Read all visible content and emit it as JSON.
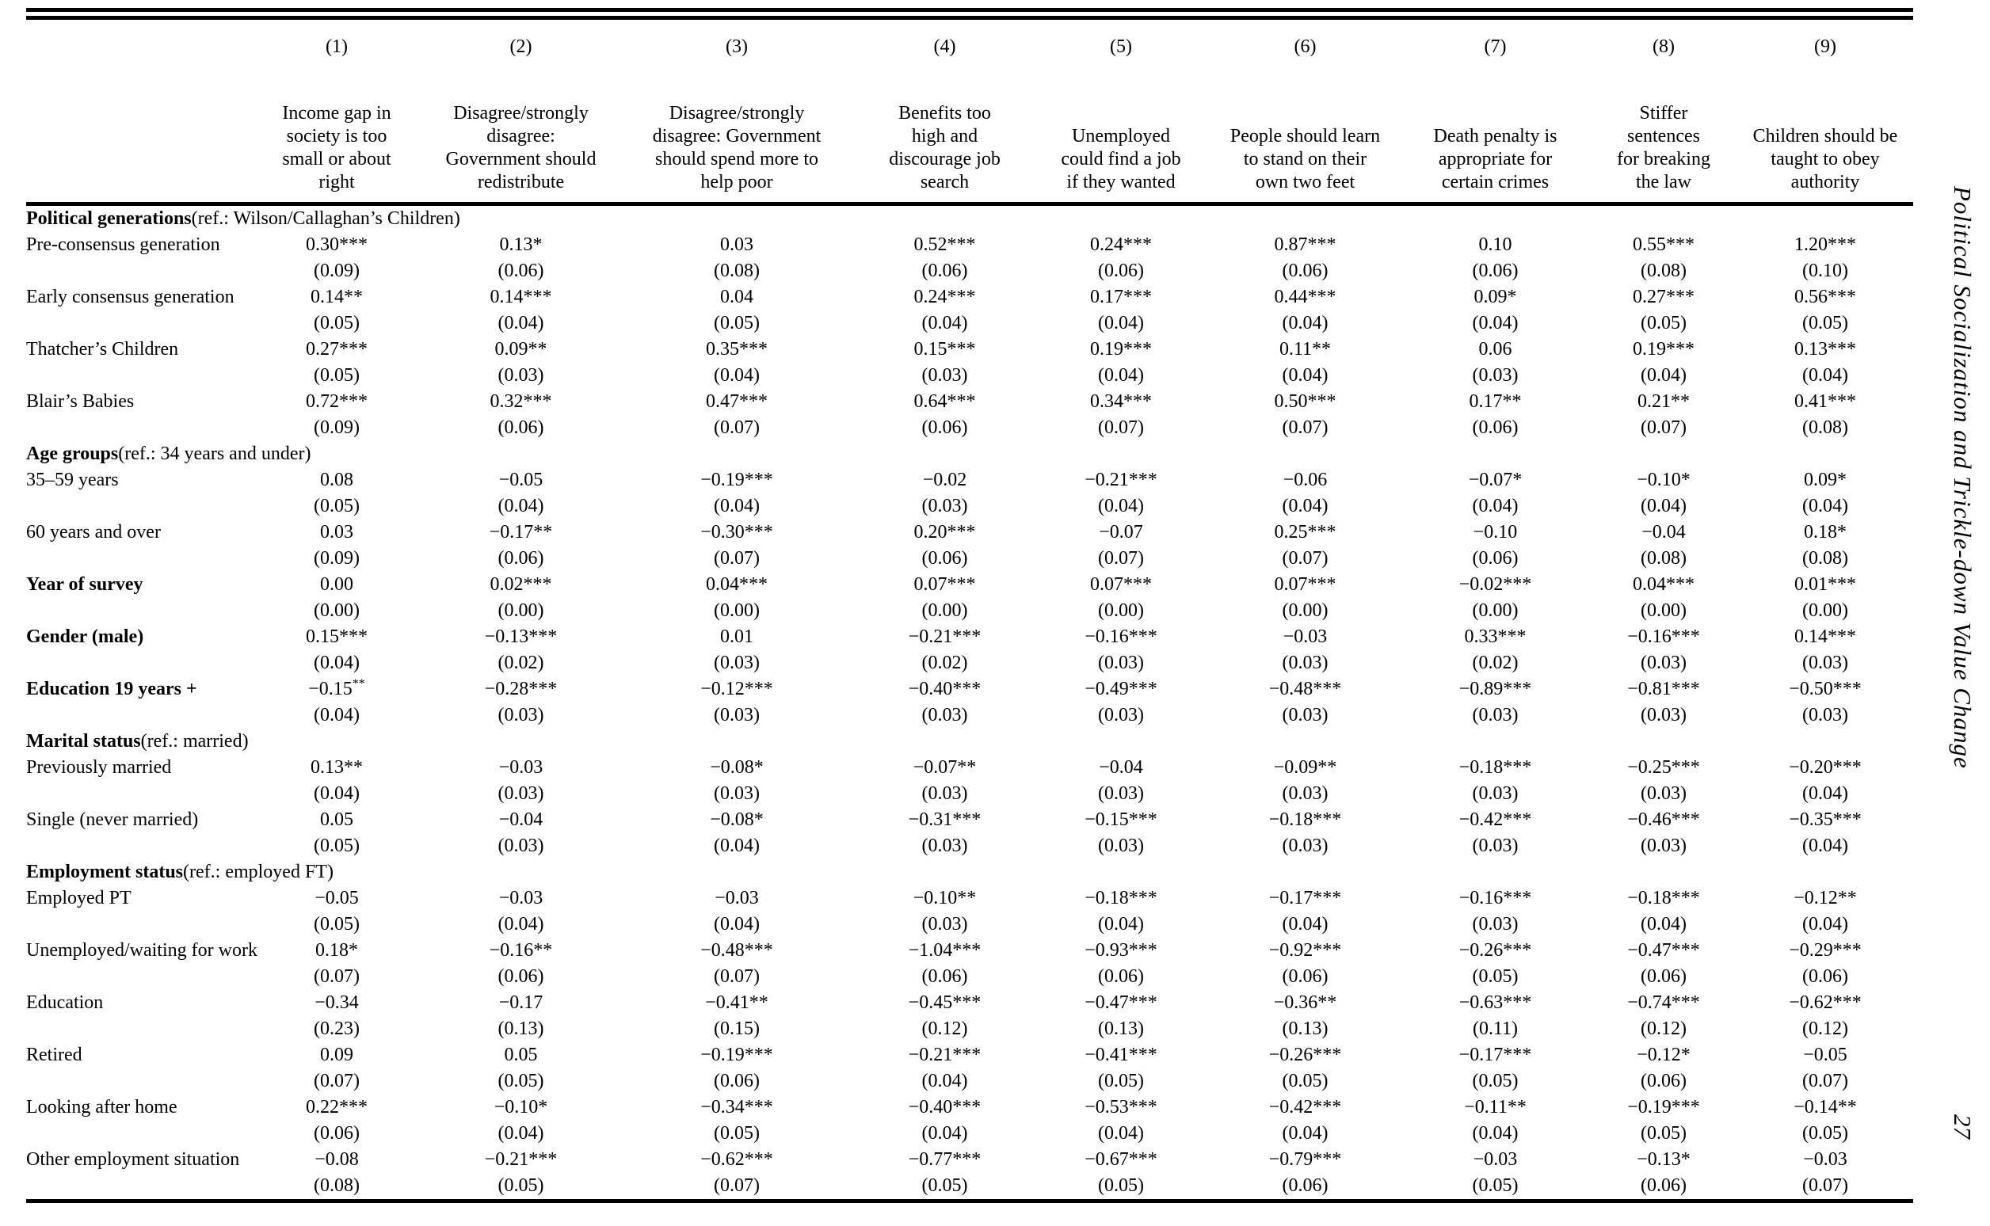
{
  "page": {
    "running_title": "Political Socialization and Trickle-down Value Change",
    "page_number": "27"
  },
  "table": {
    "columns": [
      {
        "num": "(1)",
        "label": "Income gap in society is too small or about right"
      },
      {
        "num": "(2)",
        "label": "Disagree/strongly disagree: Government should redistribute"
      },
      {
        "num": "(3)",
        "label": "Disagree/strongly disagree: Government should spend more to help poor"
      },
      {
        "num": "(4)",
        "label": "Benefits too high and discourage job search"
      },
      {
        "num": "(5)",
        "label": "Unemployed could find a job if they wanted"
      },
      {
        "num": "(6)",
        "label": "People should learn to stand on their own two feet"
      },
      {
        "num": "(7)",
        "label": "Death penalty is appropriate for certain crimes"
      },
      {
        "num": "(8)",
        "label": "Stiffer sentences for breaking the law"
      },
      {
        "num": "(9)",
        "label": "Children should be taught to obey authority"
      }
    ],
    "rows": [
      {
        "type": "section",
        "bold": "Political generations",
        "rest": " (ref.: Wilson/Callaghan’s Children)"
      },
      {
        "type": "coef",
        "label": "Pre-consensus generation",
        "bold": false,
        "coefs": [
          "0.30***",
          "0.13*",
          "0.03",
          "0.52***",
          "0.24***",
          "0.87***",
          "0.10",
          "0.55***",
          "1.20***"
        ],
        "ses": [
          "(0.09)",
          "(0.06)",
          "(0.08)",
          "(0.06)",
          "(0.06)",
          "(0.06)",
          "(0.06)",
          "(0.08)",
          "(0.10)"
        ]
      },
      {
        "type": "coef",
        "label": "Early consensus generation",
        "bold": false,
        "coefs": [
          "0.14**",
          "0.14***",
          "0.04",
          "0.24***",
          "0.17***",
          "0.44***",
          "0.09*",
          "0.27***",
          "0.56***"
        ],
        "ses": [
          "(0.05)",
          "(0.04)",
          "(0.05)",
          "(0.04)",
          "(0.04)",
          "(0.04)",
          "(0.04)",
          "(0.05)",
          "(0.05)"
        ]
      },
      {
        "type": "coef",
        "label": "Thatcher’s Children",
        "bold": false,
        "coefs": [
          "0.27***",
          "0.09**",
          "0.35***",
          "0.15***",
          "0.19***",
          "0.11**",
          "0.06",
          "0.19***",
          "0.13***"
        ],
        "ses": [
          "(0.05)",
          "(0.03)",
          "(0.04)",
          "(0.03)",
          "(0.04)",
          "(0.04)",
          "(0.03)",
          "(0.04)",
          "(0.04)"
        ]
      },
      {
        "type": "coef",
        "label": "Blair’s Babies",
        "bold": false,
        "coefs": [
          "0.72***",
          "0.32***",
          "0.47***",
          "0.64***",
          "0.34***",
          "0.50***",
          "0.17**",
          "0.21**",
          "0.41***"
        ],
        "ses": [
          "(0.09)",
          "(0.06)",
          "(0.07)",
          "(0.06)",
          "(0.07)",
          "(0.07)",
          "(0.06)",
          "(0.07)",
          "(0.08)"
        ]
      },
      {
        "type": "section",
        "bold": "Age groups",
        "rest": " (ref.: 34 years and under)"
      },
      {
        "type": "coef",
        "label": "35–59 years",
        "bold": false,
        "coefs": [
          "0.08",
          "−0.05",
          "−0.19***",
          "−0.02",
          "−0.21***",
          "−0.06",
          "−0.07*",
          "−0.10*",
          "0.09*"
        ],
        "ses": [
          "(0.05)",
          "(0.04)",
          "(0.04)",
          "(0.03)",
          "(0.04)",
          "(0.04)",
          "(0.04)",
          "(0.04)",
          "(0.04)"
        ]
      },
      {
        "type": "coef",
        "label": "60 years and over",
        "bold": false,
        "coefs": [
          "0.03",
          "−0.17**",
          "−0.30***",
          "0.20***",
          "−0.07",
          "0.25***",
          "−0.10",
          "−0.04",
          "0.18*"
        ],
        "ses": [
          "(0.09)",
          "(0.06)",
          "(0.07)",
          "(0.06)",
          "(0.07)",
          "(0.07)",
          "(0.06)",
          "(0.08)",
          "(0.08)"
        ]
      },
      {
        "type": "coef",
        "label": "Year of survey",
        "bold": true,
        "coefs": [
          "0.00",
          "0.02***",
          "0.04***",
          "0.07***",
          "0.07***",
          "0.07***",
          "−0.02***",
          "0.04***",
          "0.01***"
        ],
        "ses": [
          "(0.00)",
          "(0.00)",
          "(0.00)",
          "(0.00)",
          "(0.00)",
          "(0.00)",
          "(0.00)",
          "(0.00)",
          "(0.00)"
        ]
      },
      {
        "type": "coef",
        "label": "Gender (male)",
        "bold": true,
        "coefs": [
          "0.15***",
          "−0.13***",
          "0.01",
          "−0.21***",
          "−0.16***",
          "−0.03",
          "0.33***",
          "−0.16***",
          "0.14***"
        ],
        "ses": [
          "(0.04)",
          "(0.02)",
          "(0.03)",
          "(0.02)",
          "(0.03)",
          "(0.03)",
          "(0.02)",
          "(0.03)",
          "(0.03)"
        ]
      },
      {
        "type": "coef",
        "label": "Education 19 years +",
        "bold": true,
        "coefs": [
          "−0.15^**",
          "−0.28***",
          "−0.12***",
          "−0.40***",
          "−0.49***",
          "−0.48***",
          "−0.89***",
          "−0.81***",
          "−0.50***"
        ],
        "ses": [
          "(0.04)",
          "(0.03)",
          "(0.03)",
          "(0.03)",
          "(0.03)",
          "(0.03)",
          "(0.03)",
          "(0.03)",
          "(0.03)"
        ]
      },
      {
        "type": "section",
        "bold": "Marital status",
        "rest": " (ref.: married)"
      },
      {
        "type": "coef",
        "label": "Previously married",
        "bold": false,
        "coefs": [
          "0.13**",
          "−0.03",
          "−0.08*",
          "−0.07**",
          "−0.04",
          "−0.09**",
          "−0.18***",
          "−0.25***",
          "−0.20***"
        ],
        "ses": [
          "(0.04)",
          "(0.03)",
          "(0.03)",
          "(0.03)",
          "(0.03)",
          "(0.03)",
          "(0.03)",
          "(0.03)",
          "(0.04)"
        ]
      },
      {
        "type": "coef",
        "label": "Single (never married)",
        "bold": false,
        "coefs": [
          "0.05",
          "−0.04",
          "−0.08*",
          "−0.31***",
          "−0.15***",
          "−0.18***",
          "−0.42***",
          "−0.46***",
          "−0.35***"
        ],
        "ses": [
          "(0.05)",
          "(0.03)",
          "(0.04)",
          "(0.03)",
          "(0.03)",
          "(0.03)",
          "(0.03)",
          "(0.03)",
          "(0.04)"
        ]
      },
      {
        "type": "section",
        "bold": "Employment status",
        "rest": " (ref.: employed FT)"
      },
      {
        "type": "coef",
        "label": "Employed PT",
        "bold": false,
        "coefs": [
          "−0.05",
          "−0.03",
          "−0.03",
          "−0.10**",
          "−0.18***",
          "−0.17***",
          "−0.16***",
          "−0.18***",
          "−0.12**"
        ],
        "ses": [
          "(0.05)",
          "(0.04)",
          "(0.04)",
          "(0.03)",
          "(0.04)",
          "(0.04)",
          "(0.03)",
          "(0.04)",
          "(0.04)"
        ]
      },
      {
        "type": "coef",
        "label": "Unemployed/waiting for work",
        "bold": false,
        "coefs": [
          "0.18*",
          "−0.16**",
          "−0.48***",
          "−1.04***",
          "−0.93***",
          "−0.92***",
          "−0.26***",
          "−0.47***",
          "−0.29***"
        ],
        "ses": [
          "(0.07)",
          "(0.06)",
          "(0.07)",
          "(0.06)",
          "(0.06)",
          "(0.06)",
          "(0.05)",
          "(0.06)",
          "(0.06)"
        ]
      },
      {
        "type": "coef",
        "label": "Education",
        "bold": false,
        "coefs": [
          "−0.34",
          "−0.17",
          "−0.41**",
          "−0.45***",
          "−0.47***",
          "−0.36**",
          "−0.63***",
          "−0.74***",
          "−0.62***"
        ],
        "ses": [
          "(0.23)",
          "(0.13)",
          "(0.15)",
          "(0.12)",
          "(0.13)",
          "(0.13)",
          "(0.11)",
          "(0.12)",
          "(0.12)"
        ]
      },
      {
        "type": "coef",
        "label": "Retired",
        "bold": false,
        "coefs": [
          "0.09",
          "0.05",
          "−0.19***",
          "−0.21***",
          "−0.41***",
          "−0.26***",
          "−0.17***",
          "−0.12*",
          "−0.05"
        ],
        "ses": [
          "(0.07)",
          "(0.05)",
          "(0.06)",
          "(0.04)",
          "(0.05)",
          "(0.05)",
          "(0.05)",
          "(0.06)",
          "(0.07)"
        ]
      },
      {
        "type": "coef",
        "label": "Looking after home",
        "bold": false,
        "coefs": [
          "0.22***",
          "−0.10*",
          "−0.34***",
          "−0.40***",
          "−0.53***",
          "−0.42***",
          "−0.11**",
          "−0.19***",
          "−0.14**"
        ],
        "ses": [
          "(0.06)",
          "(0.04)",
          "(0.05)",
          "(0.04)",
          "(0.04)",
          "(0.04)",
          "(0.04)",
          "(0.05)",
          "(0.05)"
        ]
      },
      {
        "type": "coef",
        "label": "Other employment situation",
        "bold": false,
        "coefs": [
          "−0.08",
          "−0.21***",
          "−0.62***",
          "−0.77***",
          "−0.67***",
          "−0.79***",
          "−0.03",
          "−0.13*",
          "−0.03"
        ],
        "ses": [
          "(0.08)",
          "(0.05)",
          "(0.07)",
          "(0.05)",
          "(0.05)",
          "(0.06)",
          "(0.05)",
          "(0.06)",
          "(0.07)"
        ]
      }
    ]
  }
}
